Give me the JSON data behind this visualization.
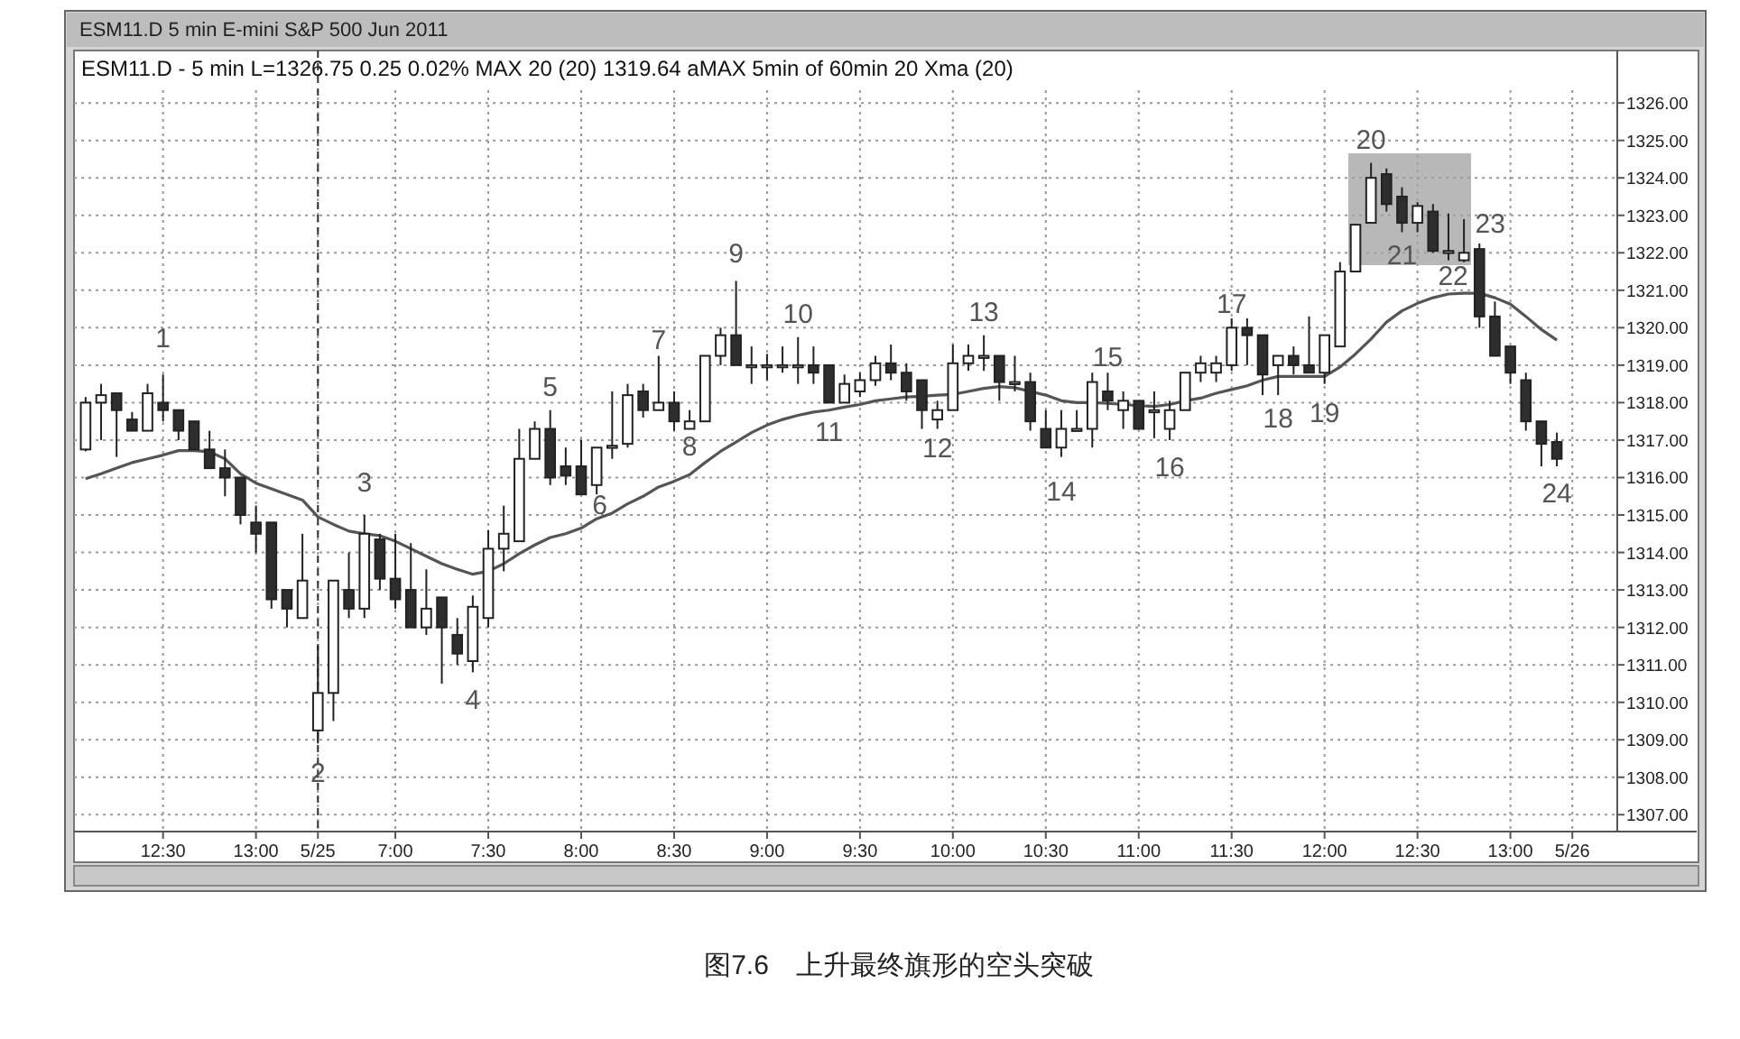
{
  "chart_data": {
    "type": "candlestick",
    "title": "ESM11.D 5 min E-mini S&P 500 Jun 2011",
    "subtitle": "ESM11.D - 5 min  L=1326.75  0.25  0.02%  MAX 20 (20)  1319.64  aMAX 5min of 60min 20 Xma (20)",
    "categories": [
      null,
      null,
      null,
      null,
      null,
      "12:30",
      null,
      null,
      null,
      null,
      null,
      "13:00",
      null,
      null,
      null,
      "5/25",
      null,
      null,
      null,
      null,
      "7:00",
      null,
      null,
      null,
      null,
      null,
      "7:30",
      null,
      null,
      null,
      null,
      null,
      "8:00",
      null,
      null,
      null,
      null,
      null,
      "8:30",
      null,
      null,
      null,
      null,
      null,
      "9:00",
      null,
      null,
      null,
      null,
      null,
      "9:30",
      null,
      null,
      null,
      null,
      null,
      "10:00",
      null,
      null,
      null,
      null,
      null,
      "10:30",
      null,
      null,
      null,
      null,
      null,
      "11:00",
      null,
      null,
      null,
      null,
      null,
      "11:30",
      null,
      null,
      null,
      null,
      null,
      "12:00",
      null,
      null,
      null,
      null,
      null,
      "12:30",
      null,
      null,
      null,
      null,
      null,
      "13:00",
      null,
      null,
      null,
      "5/26"
    ],
    "ohlc": [
      [
        1316.75,
        1318.15,
        1316.7,
        1318.0
      ],
      [
        1318.0,
        1318.5,
        1317.0,
        1318.2
      ],
      [
        1318.25,
        1318.25,
        1316.55,
        1317.8
      ],
      [
        1317.55,
        1317.75,
        1317.25,
        1317.25
      ],
      [
        1317.25,
        1318.5,
        1317.25,
        1318.25
      ],
      [
        1318.0,
        1318.75,
        1317.5,
        1317.8
      ],
      [
        1317.8,
        1317.8,
        1317.0,
        1317.25
      ],
      [
        1317.5,
        1317.5,
        1316.75,
        1316.75
      ],
      [
        1316.75,
        1317.25,
        1316.25,
        1316.25
      ],
      [
        1316.25,
        1316.75,
        1315.5,
        1316.0
      ],
      [
        1316.0,
        1316.0,
        1314.75,
        1315.0
      ],
      [
        1314.8,
        1315.25,
        1314.0,
        1314.5
      ],
      [
        1314.8,
        1314.8,
        1312.5,
        1312.75
      ],
      [
        1313.0,
        1313.0,
        1312.0,
        1312.5
      ],
      [
        1312.25,
        1314.5,
        1312.25,
        1313.25
      ],
      [
        1309.25,
        1311.5,
        1308.9,
        1310.25
      ],
      [
        1310.25,
        1313.25,
        1309.5,
        1313.25
      ],
      [
        1313.0,
        1314.0,
        1312.25,
        1312.5
      ],
      [
        1312.5,
        1315.0,
        1312.25,
        1314.5
      ],
      [
        1314.35,
        1314.5,
        1313.0,
        1313.3
      ],
      [
        1313.3,
        1314.5,
        1312.5,
        1312.75
      ],
      [
        1313.0,
        1314.25,
        1312.0,
        1312.0
      ],
      [
        1312.0,
        1313.55,
        1311.8,
        1312.5
      ],
      [
        1312.8,
        1312.8,
        1310.5,
        1312.0
      ],
      [
        1311.8,
        1312.25,
        1311.0,
        1311.3
      ],
      [
        1311.1,
        1312.85,
        1310.8,
        1312.55
      ],
      [
        1312.25,
        1314.6,
        1312.0,
        1314.1
      ],
      [
        1314.1,
        1315.25,
        1313.5,
        1314.5
      ],
      [
        1314.3,
        1317.3,
        1314.3,
        1316.5
      ],
      [
        1316.5,
        1317.5,
        1316.5,
        1317.3
      ],
      [
        1317.3,
        1317.8,
        1315.8,
        1316.0
      ],
      [
        1316.3,
        1316.8,
        1315.8,
        1316.05
      ],
      [
        1316.3,
        1317.0,
        1315.55,
        1315.55
      ],
      [
        1315.8,
        1316.8,
        1315.55,
        1316.8
      ],
      [
        1316.8,
        1318.3,
        1316.5,
        1316.85
      ],
      [
        1316.9,
        1318.5,
        1316.8,
        1318.2
      ],
      [
        1318.3,
        1318.5,
        1317.6,
        1317.8
      ],
      [
        1317.8,
        1319.25,
        1317.8,
        1318.0
      ],
      [
        1318.0,
        1318.3,
        1317.25,
        1317.5
      ],
      [
        1317.3,
        1317.8,
        1317.3,
        1317.5
      ],
      [
        1317.5,
        1319.25,
        1317.5,
        1319.25
      ],
      [
        1319.25,
        1320.0,
        1319.0,
        1319.8
      ],
      [
        1319.8,
        1321.25,
        1319.0,
        1319.0
      ],
      [
        1319.0,
        1319.5,
        1318.5,
        1319.0
      ],
      [
        1319.0,
        1319.3,
        1318.6,
        1319.0
      ],
      [
        1319.0,
        1319.5,
        1318.8,
        1319.0
      ],
      [
        1319.0,
        1319.75,
        1318.5,
        1319.0
      ],
      [
        1319.0,
        1319.5,
        1318.5,
        1318.8
      ],
      [
        1319.0,
        1319.0,
        1318.0,
        1318.0
      ],
      [
        1318.0,
        1318.75,
        1318.0,
        1318.5
      ],
      [
        1318.3,
        1318.8,
        1318.15,
        1318.6
      ],
      [
        1318.6,
        1319.25,
        1318.45,
        1319.05
      ],
      [
        1319.05,
        1319.55,
        1318.6,
        1318.8
      ],
      [
        1318.8,
        1319.05,
        1318.05,
        1318.3
      ],
      [
        1318.6,
        1318.6,
        1317.3,
        1317.8
      ],
      [
        1317.55,
        1318.05,
        1317.3,
        1317.8
      ],
      [
        1317.8,
        1319.55,
        1317.8,
        1319.05
      ],
      [
        1319.05,
        1319.55,
        1318.85,
        1319.25
      ],
      [
        1319.25,
        1319.8,
        1318.85,
        1319.25
      ],
      [
        1319.25,
        1319.25,
        1318.05,
        1318.55
      ],
      [
        1318.55,
        1319.25,
        1318.3,
        1318.55
      ],
      [
        1318.55,
        1318.8,
        1317.25,
        1317.5
      ],
      [
        1317.3,
        1317.8,
        1316.8,
        1316.8
      ],
      [
        1316.8,
        1317.8,
        1316.55,
        1317.3
      ],
      [
        1317.3,
        1317.8,
        1317.25,
        1317.3
      ],
      [
        1317.3,
        1318.8,
        1316.8,
        1318.55
      ],
      [
        1318.3,
        1318.8,
        1317.8,
        1318.05
      ],
      [
        1317.8,
        1318.3,
        1317.3,
        1318.05
      ],
      [
        1318.05,
        1318.05,
        1317.3,
        1317.3
      ],
      [
        1317.8,
        1318.3,
        1317.05,
        1317.8
      ],
      [
        1317.3,
        1318.05,
        1317.0,
        1317.8
      ],
      [
        1317.8,
        1318.8,
        1317.8,
        1318.8
      ],
      [
        1318.8,
        1319.25,
        1318.55,
        1319.05
      ],
      [
        1318.8,
        1319.25,
        1318.55,
        1319.05
      ],
      [
        1319.0,
        1320.25,
        1318.85,
        1320.0
      ],
      [
        1320.0,
        1320.25,
        1319.0,
        1319.8
      ],
      [
        1319.8,
        1319.8,
        1318.2,
        1318.75
      ],
      [
        1319.0,
        1319.25,
        1318.2,
        1319.25
      ],
      [
        1319.25,
        1319.5,
        1318.75,
        1319.0
      ],
      [
        1319.0,
        1320.3,
        1318.8,
        1318.8
      ],
      [
        1318.8,
        1319.8,
        1318.5,
        1319.8
      ],
      [
        1319.5,
        1321.75,
        1319.5,
        1321.5
      ],
      [
        1321.5,
        1322.75,
        1321.5,
        1322.75
      ],
      [
        1322.8,
        1324.4,
        1322.8,
        1324.0
      ],
      [
        1324.1,
        1324.25,
        1323.1,
        1323.3
      ],
      [
        1323.5,
        1323.75,
        1322.55,
        1322.8
      ],
      [
        1322.8,
        1323.35,
        1322.55,
        1323.25
      ],
      [
        1323.1,
        1323.3,
        1322.0,
        1322.05
      ],
      [
        1322.05,
        1323.05,
        1321.8,
        1322.05
      ],
      [
        1321.8,
        1322.9,
        1321.75,
        1322.0
      ],
      [
        1322.1,
        1322.25,
        1320.0,
        1320.3
      ],
      [
        1320.3,
        1320.7,
        1319.25,
        1319.25
      ],
      [
        1319.5,
        1319.5,
        1318.5,
        1318.8
      ],
      [
        1318.6,
        1318.8,
        1317.25,
        1317.5
      ],
      [
        1317.5,
        1317.5,
        1316.3,
        1316.9
      ],
      [
        1316.95,
        1317.2,
        1316.3,
        1316.5
      ],
      null
    ],
    "series": [
      {
        "type": "line",
        "color": "#555555",
        "values": [
          1315.97,
          1316.1,
          1316.25,
          1316.4,
          1316.5,
          1316.6,
          1316.72,
          1316.72,
          1316.69,
          1316.5,
          1316.1,
          1315.85,
          1315.7,
          1315.55,
          1315.4,
          1314.95,
          1314.75,
          1314.57,
          1314.5,
          1314.45,
          1314.3,
          1314.1,
          1313.9,
          1313.7,
          1313.55,
          1313.42,
          1313.5,
          1313.7,
          1313.97,
          1314.2,
          1314.4,
          1314.5,
          1314.65,
          1314.9,
          1315.05,
          1315.3,
          1315.5,
          1315.75,
          1315.9,
          1316.08,
          1316.4,
          1316.7,
          1316.95,
          1317.2,
          1317.4,
          1317.55,
          1317.66,
          1317.75,
          1317.8,
          1317.88,
          1317.95,
          1318.05,
          1318.1,
          1318.15,
          1318.17,
          1318.2,
          1318.22,
          1318.3,
          1318.38,
          1318.43,
          1318.4,
          1318.3,
          1318.2,
          1318.05,
          1318.0,
          1318.0,
          1317.98,
          1317.95,
          1317.92,
          1317.9,
          1317.95,
          1318.05,
          1318.12,
          1318.25,
          1318.35,
          1318.45,
          1318.6,
          1318.7,
          1318.7,
          1318.7,
          1318.7,
          1318.95,
          1319.3,
          1319.7,
          1320.15,
          1320.45,
          1320.65,
          1320.8,
          1320.9,
          1320.92,
          1320.92,
          1320.8,
          1320.63,
          1320.3,
          1319.95,
          1319.67,
          null
        ]
      }
    ],
    "ylim": [
      1306.55,
      1327.4
    ],
    "yticks": [
      {
        "value": 1307,
        "label": "1307.00"
      },
      {
        "value": 1308,
        "label": "1308.00"
      },
      {
        "value": 1309,
        "label": "1309.00"
      },
      {
        "value": 1310,
        "label": "1310.00"
      },
      {
        "value": 1311,
        "label": "1311.00"
      },
      {
        "value": 1312,
        "label": "1312.00"
      },
      {
        "value": 1313,
        "label": "1313.00"
      },
      {
        "value": 1314,
        "label": "1314.00"
      },
      {
        "value": 1315,
        "label": "1315.00"
      },
      {
        "value": 1316,
        "label": "1316.00"
      },
      {
        "value": 1317,
        "label": "1317.00"
      },
      {
        "value": 1318,
        "label": "1318.00"
      },
      {
        "value": 1319,
        "label": "1319.00"
      },
      {
        "value": 1320,
        "label": "1320.00"
      },
      {
        "value": 1321,
        "label": "1321.00"
      },
      {
        "value": 1322,
        "label": "1322.00"
      },
      {
        "value": 1323,
        "label": "1323.00"
      },
      {
        "value": 1324,
        "label": "1324.00"
      },
      {
        "value": 1325,
        "label": "1325.00"
      },
      {
        "value": 1326,
        "label": "1326.00"
      }
    ],
    "grid": true,
    "ref_lines": [
      {
        "axis": "x",
        "value": "5/25",
        "line_style": "dashed",
        "color": "#333333"
      }
    ],
    "annotations": [
      "1",
      "2",
      "3",
      "4",
      "5",
      "6",
      "7",
      "8",
      "9",
      "10",
      "11",
      "12",
      "13",
      "14",
      "15",
      "16",
      "17",
      "18",
      "19",
      "20",
      "21",
      "22",
      "23",
      "24",
      "图7.6　上升最终旗形的空头突破"
    ]
  }
}
